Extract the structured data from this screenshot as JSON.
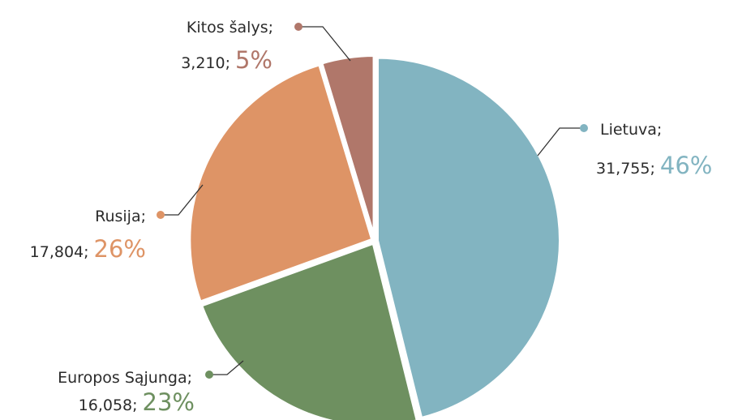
{
  "chart_data": {
    "type": "pie",
    "categories": [
      "Lietuva;",
      "Europos Sąjunga;",
      "Rusija;",
      "Kitos šalys;"
    ],
    "values": [
      31755,
      16058,
      17804,
      3210
    ],
    "value_labels": [
      "31,755;",
      "16,058;",
      "17,804;",
      "3,210;"
    ],
    "percent_labels": [
      "46%",
      "23%",
      "26%",
      "5%"
    ],
    "colors": [
      "#82b4c1",
      "#6e9060",
      "#de9466",
      "#b0776a"
    ]
  }
}
